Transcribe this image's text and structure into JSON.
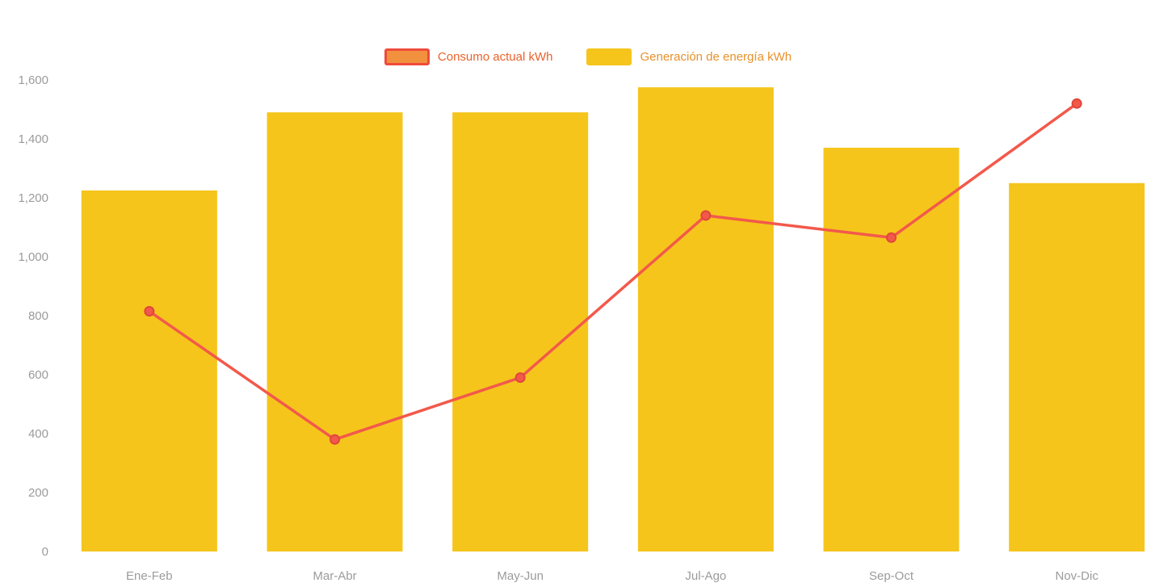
{
  "page": {
    "background": "#ffffff"
  },
  "legend": {
    "items": [
      {
        "id": "consumo",
        "label": "Consumo actual kWh",
        "series_type": "line",
        "swatch_fill": "#f2913d",
        "swatch_stroke": "#ef4b3c",
        "label_color": "#e8632c"
      },
      {
        "id": "generacion",
        "label": "Generación de energía kWh",
        "series_type": "bar",
        "swatch_fill": "#f5c51b",
        "swatch_stroke": "#f5c51b",
        "label_color": "#e8912c"
      }
    ]
  },
  "chart_data": {
    "type": "bar",
    "subtype": "bar+line combo",
    "title": "",
    "xlabel": "",
    "ylabel": "",
    "categories": [
      "Ene-Feb",
      "Mar-Abr",
      "May-Jun",
      "Jul-Ago",
      "Sep-Oct",
      "Nov-Dic"
    ],
    "series": [
      {
        "name": "Generación de energía kWh",
        "type": "bar",
        "color": "#f5c51b",
        "values": [
          1225,
          1490,
          1490,
          1575,
          1370,
          1250
        ]
      },
      {
        "name": "Consumo actual kWh",
        "type": "line",
        "color": "#f2594b",
        "point_stroke": "#e0463a",
        "values": [
          815,
          380,
          590,
          1140,
          1065,
          1520
        ]
      }
    ],
    "ylim": [
      0,
      1600
    ],
    "yticks": [
      0,
      200,
      400,
      600,
      800,
      1000,
      1200,
      1400,
      1600
    ],
    "ytick_labels": [
      "0",
      "200",
      "400",
      "600",
      "800",
      "1,000",
      "1,200",
      "1,400",
      "1,600"
    ],
    "grid": false,
    "legend_position": "top-center",
    "axis_text_color": "#9b9b9b"
  }
}
